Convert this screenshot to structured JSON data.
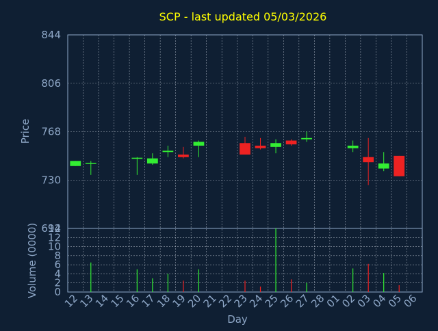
{
  "chart_data": [
    {
      "type": "candlestick",
      "title": "SCP - last updated 05/03/2026",
      "xlabel": "",
      "ylabel": "Price",
      "ylim": [
        692,
        844
      ],
      "yticks": [
        844,
        806,
        768,
        730,
        692
      ],
      "grid": true,
      "categories": [
        "12",
        "13",
        "14",
        "15",
        "16",
        "17",
        "18",
        "19",
        "20",
        "21",
        "22",
        "23",
        "24",
        "25",
        "26",
        "27",
        "28",
        "01",
        "02",
        "03",
        "04",
        "05",
        "06"
      ],
      "candles": [
        {
          "day": "12",
          "open": 741,
          "close": 745,
          "high": 745,
          "low": 741
        },
        {
          "day": "13",
          "open": 743,
          "close": 743.5,
          "high": 745,
          "low": 734
        },
        {
          "day": "16",
          "open": 747,
          "close": 747.5,
          "high": 748,
          "low": 734
        },
        {
          "day": "17",
          "open": 743,
          "close": 747,
          "high": 751,
          "low": 742
        },
        {
          "day": "18",
          "open": 752,
          "close": 753,
          "high": 757,
          "low": 748
        },
        {
          "day": "19",
          "open": 750,
          "close": 748,
          "high": 756,
          "low": 747
        },
        {
          "day": "20",
          "open": 757,
          "close": 760,
          "high": 761,
          "low": 748
        },
        {
          "day": "23",
          "open": 759,
          "close": 750,
          "high": 764,
          "low": 750
        },
        {
          "day": "24",
          "open": 757,
          "close": 755,
          "high": 763,
          "low": 754
        },
        {
          "day": "25",
          "open": 756,
          "close": 759,
          "high": 762,
          "low": 751
        },
        {
          "day": "26",
          "open": 761,
          "close": 758,
          "high": 762,
          "low": 757
        },
        {
          "day": "27",
          "open": 762,
          "close": 763,
          "high": 768,
          "low": 760
        },
        {
          "day": "02",
          "open": 755,
          "close": 757,
          "high": 761,
          "low": 752
        },
        {
          "day": "03",
          "open": 748,
          "close": 744,
          "high": 763,
          "low": 726
        },
        {
          "day": "04",
          "open": 739,
          "close": 743,
          "high": 752,
          "low": 737
        },
        {
          "day": "05",
          "open": 749,
          "close": 733,
          "high": 749,
          "low": 733
        }
      ]
    },
    {
      "type": "bar",
      "title": "",
      "xlabel": "Day",
      "ylabel": "Volume (0000)",
      "ylim": [
        0,
        14
      ],
      "yticks": [
        0,
        2,
        4,
        6,
        8,
        10,
        12,
        14
      ],
      "categories": [
        "12",
        "13",
        "14",
        "15",
        "16",
        "17",
        "18",
        "19",
        "20",
        "21",
        "22",
        "23",
        "24",
        "25",
        "26",
        "27",
        "28",
        "01",
        "02",
        "03",
        "04",
        "05",
        "06"
      ],
      "values": [
        0,
        6.5,
        0,
        0,
        5,
        3,
        4,
        2.5,
        5,
        0,
        0,
        2.5,
        1.2,
        14,
        2.8,
        2,
        0,
        0,
        5.2,
        6.2,
        4.2,
        1.5,
        0
      ],
      "bar_colors": [
        "",
        "#33ee33",
        "",
        "",
        "#33ee33",
        "#33ee33",
        "#33ee33",
        "#ee2222",
        "#33ee33",
        "",
        "",
        "#ee2222",
        "#ee2222",
        "#33ee33",
        "#ee2222",
        "#33ee33",
        "",
        "",
        "#33ee33",
        "#ee2222",
        "#33ee33",
        "#ee2222",
        ""
      ]
    }
  ],
  "colors": {
    "background": "#0f1f33",
    "axis_text": "#8fa8c8",
    "title": "#ffff00",
    "up": "#33ee33",
    "down": "#ee2222",
    "grid": "#c8d0dc"
  }
}
